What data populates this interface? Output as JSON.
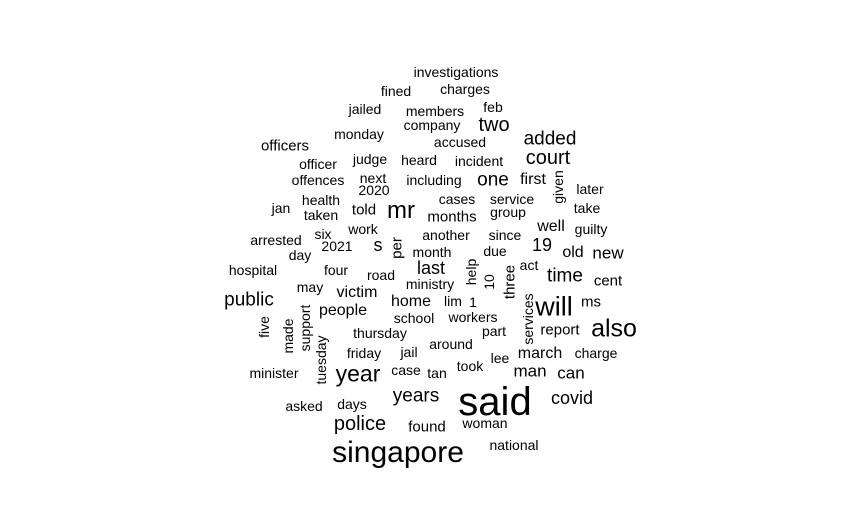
{
  "chart_data": {
    "type": "wordcloud",
    "words": [
      {
        "text": "said",
        "weight": 40
      },
      {
        "text": "singapore",
        "weight": 30
      },
      {
        "text": "will",
        "weight": 27
      },
      {
        "text": "also",
        "weight": 25
      },
      {
        "text": "mr",
        "weight": 24
      },
      {
        "text": "year",
        "weight": 23
      },
      {
        "text": "police",
        "weight": 20
      },
      {
        "text": "court",
        "weight": 20
      },
      {
        "text": "two",
        "weight": 20
      },
      {
        "text": "added",
        "weight": 19
      },
      {
        "text": "public",
        "weight": 19
      },
      {
        "text": "time",
        "weight": 19
      },
      {
        "text": "one",
        "weight": 19
      },
      {
        "text": "years",
        "weight": 19
      },
      {
        "text": "covid",
        "weight": 18
      },
      {
        "text": "last",
        "weight": 18
      },
      {
        "text": "s",
        "weight": 18
      },
      {
        "text": "19",
        "weight": 18
      },
      {
        "text": "man",
        "weight": 17
      },
      {
        "text": "can",
        "weight": 17
      },
      {
        "text": "new",
        "weight": 17
      },
      {
        "text": "victim",
        "weight": 16
      },
      {
        "text": "home",
        "weight": 16
      },
      {
        "text": "march",
        "weight": 16
      },
      {
        "text": "well",
        "weight": 16
      },
      {
        "text": "first",
        "weight": 16
      },
      {
        "text": "old",
        "weight": 16
      },
      {
        "text": "people",
        "weight": 16
      },
      {
        "text": "report",
        "weight": 15
      },
      {
        "text": "ms",
        "weight": 15
      },
      {
        "text": "cent",
        "weight": 15
      },
      {
        "text": "told",
        "weight": 15
      },
      {
        "text": "months",
        "weight": 15
      },
      {
        "text": "found",
        "weight": 15
      },
      {
        "text": "three",
        "weight": 15
      },
      {
        "text": "per",
        "weight": 15
      },
      {
        "text": "work",
        "weight": 14
      },
      {
        "text": "investigations",
        "weight": 14
      },
      {
        "text": "charges",
        "weight": 14
      },
      {
        "text": "fined",
        "weight": 14
      },
      {
        "text": "feb",
        "weight": 14
      },
      {
        "text": "jailed",
        "weight": 14
      },
      {
        "text": "members",
        "weight": 14
      },
      {
        "text": "monday",
        "weight": 14
      },
      {
        "text": "company",
        "weight": 14
      },
      {
        "text": "officers",
        "weight": 15
      },
      {
        "text": "accused",
        "weight": 14
      },
      {
        "text": "judge",
        "weight": 14
      },
      {
        "text": "heard",
        "weight": 14
      },
      {
        "text": "incident",
        "weight": 14
      },
      {
        "text": "officer",
        "weight": 14
      },
      {
        "text": "next",
        "weight": 14
      },
      {
        "text": "offences",
        "weight": 14
      },
      {
        "text": "2020",
        "weight": 14
      },
      {
        "text": "including",
        "weight": 14
      },
      {
        "text": "later",
        "weight": 14
      },
      {
        "text": "health",
        "weight": 14
      },
      {
        "text": "cases",
        "weight": 14
      },
      {
        "text": "service",
        "weight": 14
      },
      {
        "text": "take",
        "weight": 14
      },
      {
        "text": "jan",
        "weight": 14
      },
      {
        "text": "taken",
        "weight": 14
      },
      {
        "text": "group",
        "weight": 14
      },
      {
        "text": "guilty",
        "weight": 14
      },
      {
        "text": "six",
        "weight": 14
      },
      {
        "text": "another",
        "weight": 14
      },
      {
        "text": "since",
        "weight": 14
      },
      {
        "text": "arrested",
        "weight": 14
      },
      {
        "text": "2021",
        "weight": 14
      },
      {
        "text": "month",
        "weight": 14
      },
      {
        "text": "due",
        "weight": 14
      },
      {
        "text": "day",
        "weight": 14
      },
      {
        "text": "hospital",
        "weight": 14
      },
      {
        "text": "four",
        "weight": 14
      },
      {
        "text": "road",
        "weight": 14
      },
      {
        "text": "act",
        "weight": 14
      },
      {
        "text": "ministry",
        "weight": 14
      },
      {
        "text": "may",
        "weight": 14
      },
      {
        "text": "lim",
        "weight": 14
      },
      {
        "text": "1",
        "weight": 14
      },
      {
        "text": "school",
        "weight": 14
      },
      {
        "text": "workers",
        "weight": 14
      },
      {
        "text": "part",
        "weight": 14
      },
      {
        "text": "thursday",
        "weight": 14
      },
      {
        "text": "around",
        "weight": 14
      },
      {
        "text": "friday",
        "weight": 14
      },
      {
        "text": "jail",
        "weight": 14
      },
      {
        "text": "lee",
        "weight": 14
      },
      {
        "text": "charge",
        "weight": 14
      },
      {
        "text": "minister",
        "weight": 14
      },
      {
        "text": "case",
        "weight": 14
      },
      {
        "text": "tan",
        "weight": 14
      },
      {
        "text": "took",
        "weight": 14
      },
      {
        "text": "asked",
        "weight": 14
      },
      {
        "text": "days",
        "weight": 14
      },
      {
        "text": "woman",
        "weight": 14
      },
      {
        "text": "national",
        "weight": 14
      },
      {
        "text": "given",
        "weight": 14
      },
      {
        "text": "five",
        "weight": 14
      },
      {
        "text": "made",
        "weight": 14
      },
      {
        "text": "support",
        "weight": 14
      },
      {
        "text": "tuesday",
        "weight": 14
      },
      {
        "text": "help",
        "weight": 14
      },
      {
        "text": "10",
        "weight": 14
      },
      {
        "text": "services",
        "weight": 14
      }
    ]
  }
}
